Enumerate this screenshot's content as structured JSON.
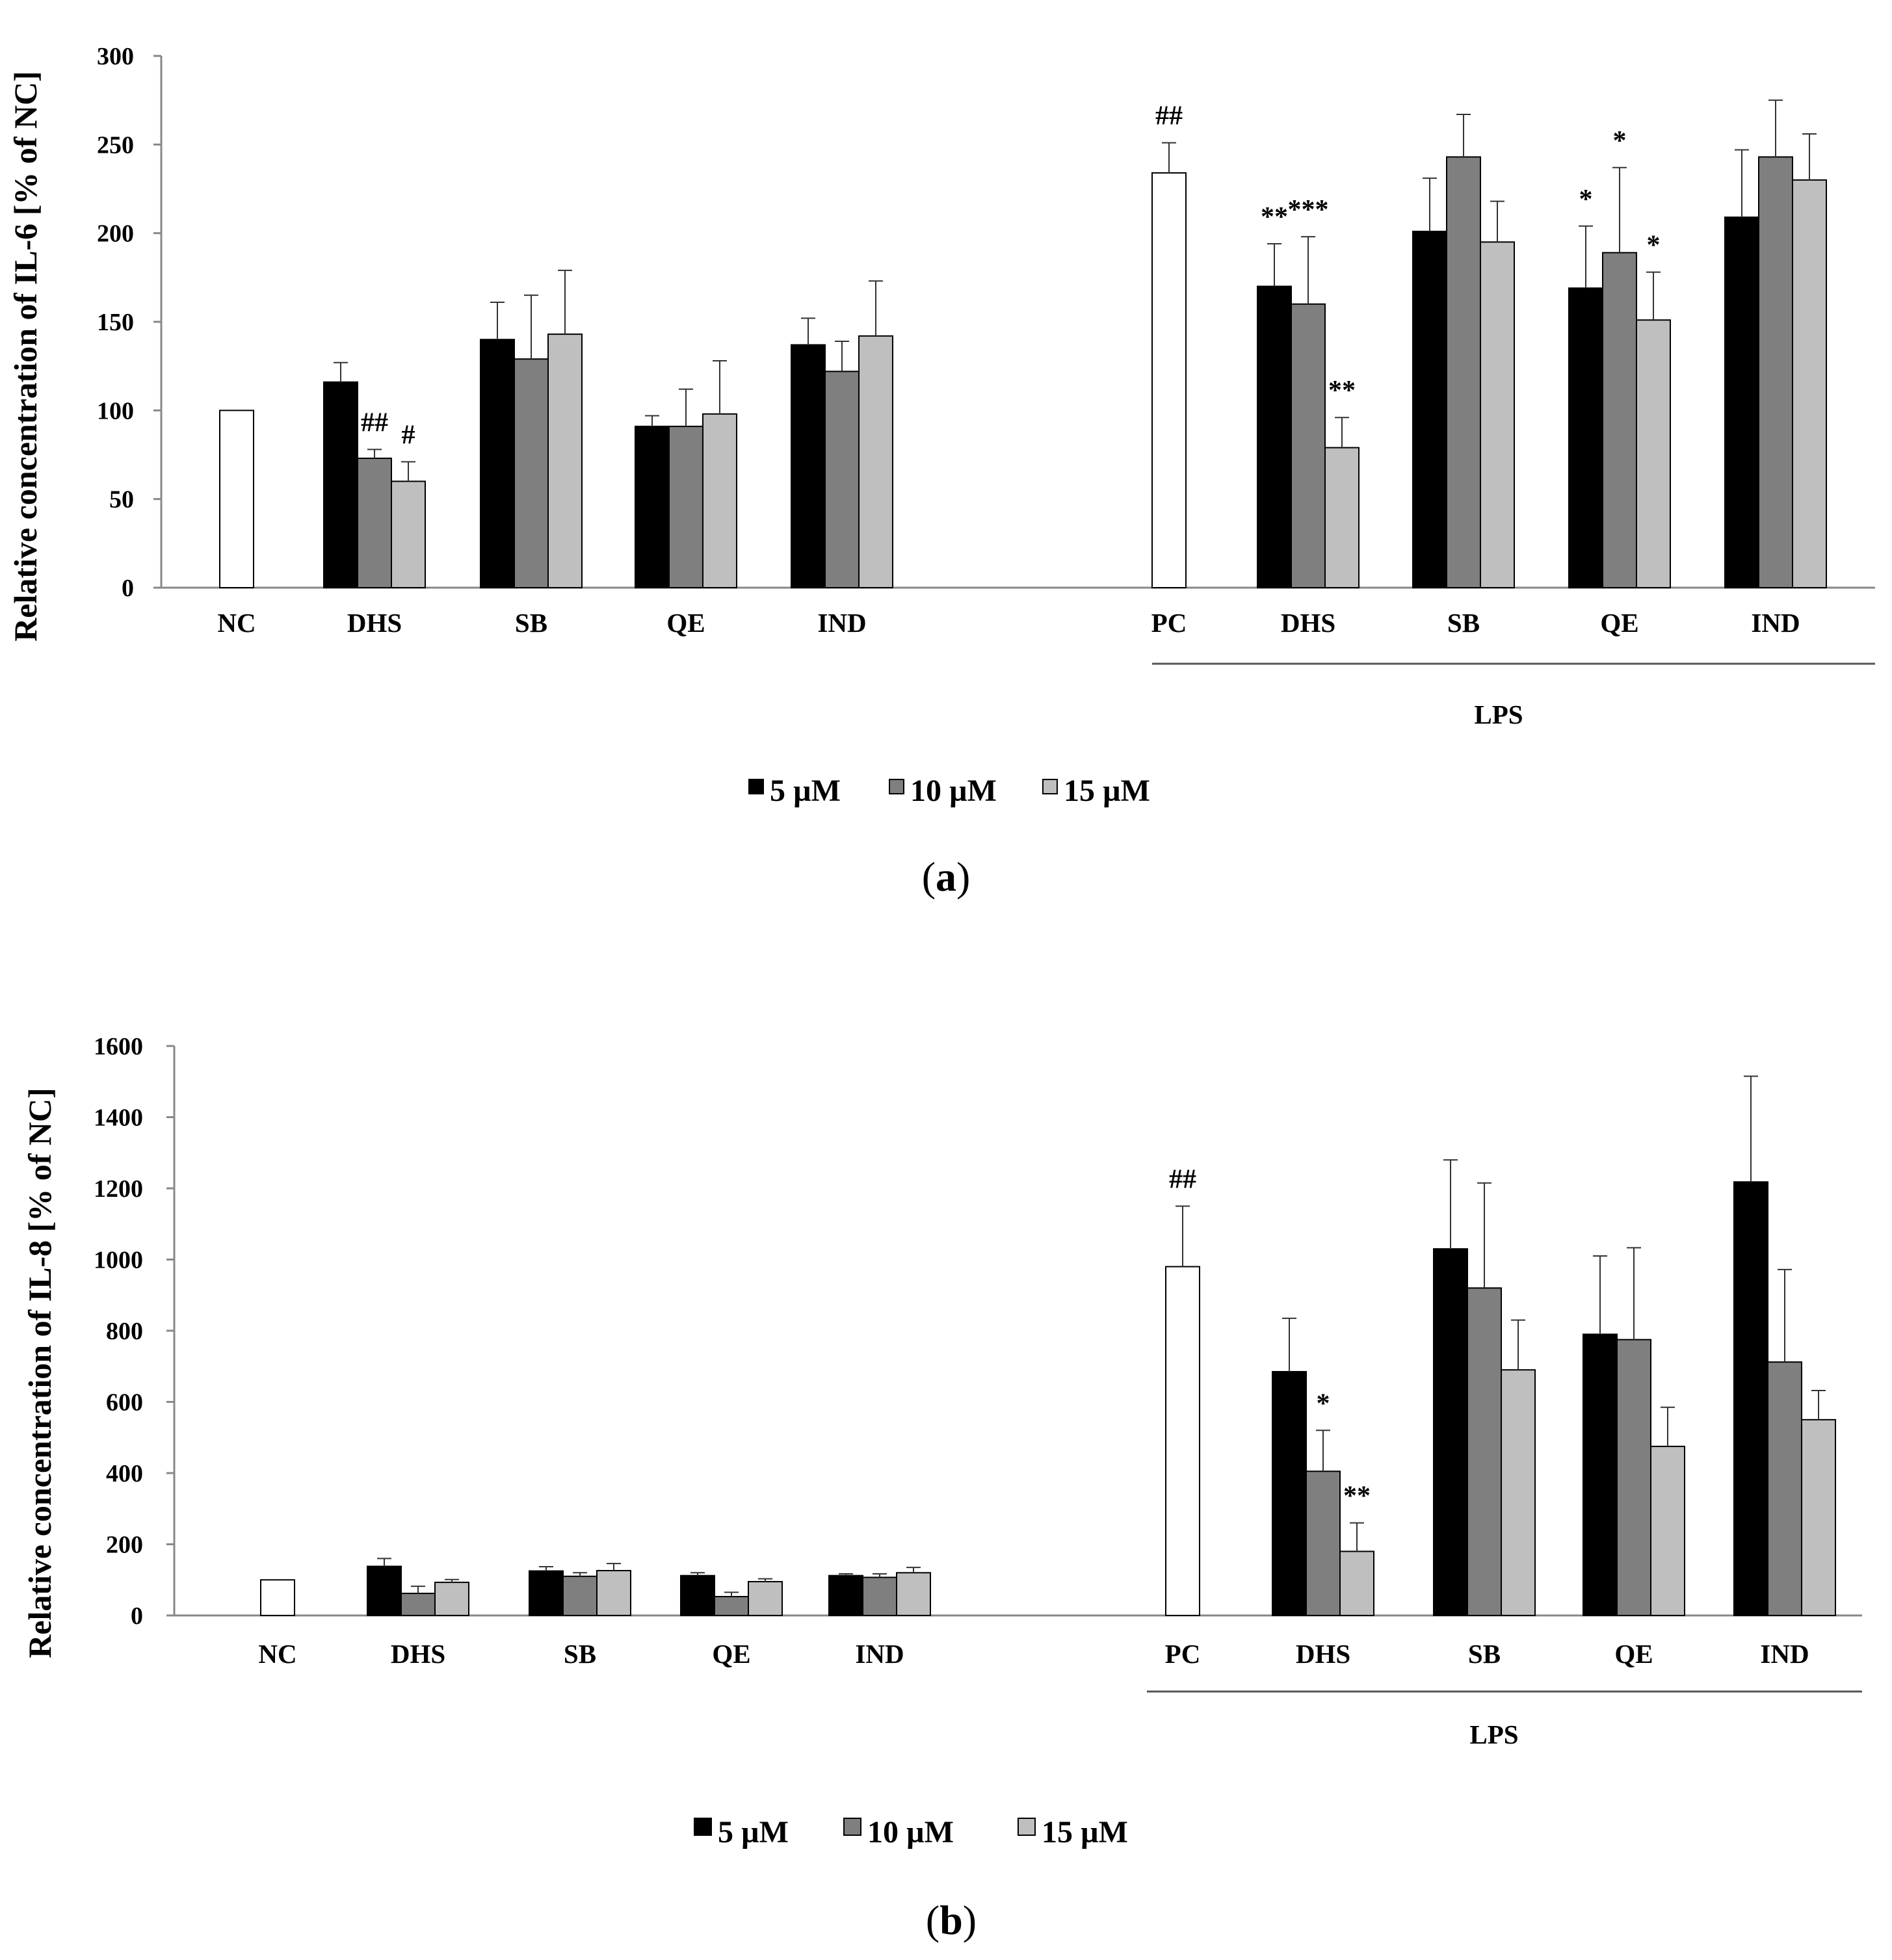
{
  "legend": [
    "5 µM",
    "10 µM",
    "15 µM"
  ],
  "colors": {
    "c5": "#000000",
    "c10": "#7f7f7f",
    "c15": "#bfbfbf",
    "control": "#ffffff",
    "stroke": "#000000",
    "axis": "#888888"
  },
  "chart_data": [
    {
      "type": "bar",
      "panel_label": "a",
      "ylabel": "Relative concentration of IL-6 [%  of NC]",
      "ylim": [
        0,
        300
      ],
      "yticks": [
        0,
        50,
        100,
        150,
        200,
        250,
        300
      ],
      "group_label": "LPS",
      "groups": [
        {
          "label": "NC",
          "bars": [
            {
              "series": "control",
              "value": 100,
              "err": 0
            }
          ]
        },
        {
          "label": "DHS",
          "bars": [
            {
              "series": "5 µM",
              "value": 116,
              "err": 11
            },
            {
              "series": "10 µM",
              "value": 73,
              "err": 5,
              "sig": "##"
            },
            {
              "series": "15 µM",
              "value": 60,
              "err": 11,
              "sig": "#"
            }
          ]
        },
        {
          "label": "SB",
          "bars": [
            {
              "series": "5 µM",
              "value": 140,
              "err": 21
            },
            {
              "series": "10 µM",
              "value": 129,
              "err": 36
            },
            {
              "series": "15 µM",
              "value": 143,
              "err": 36
            }
          ]
        },
        {
          "label": "QE",
          "bars": [
            {
              "series": "5 µM",
              "value": 91,
              "err": 6
            },
            {
              "series": "10 µM",
              "value": 91,
              "err": 21
            },
            {
              "series": "15 µM",
              "value": 98,
              "err": 30
            }
          ]
        },
        {
          "label": "IND",
          "bars": [
            {
              "series": "5 µM",
              "value": 137,
              "err": 15
            },
            {
              "series": "10 µM",
              "value": 122,
              "err": 17
            },
            {
              "series": "15 µM",
              "value": 142,
              "err": 31
            }
          ]
        },
        {
          "label": "PC",
          "bars": [
            {
              "series": "control",
              "value": 234,
              "err": 17,
              "sig": "##"
            }
          ]
        },
        {
          "label": "DHS",
          "bars": [
            {
              "series": "5 µM",
              "value": 170,
              "err": 24,
              "sig": "**"
            },
            {
              "series": "10 µM",
              "value": 160,
              "err": 38,
              "sig": "***"
            },
            {
              "series": "15 µM",
              "value": 79,
              "err": 17,
              "sig": "**"
            }
          ]
        },
        {
          "label": "SB",
          "bars": [
            {
              "series": "5 µM",
              "value": 201,
              "err": 30
            },
            {
              "series": "10 µM",
              "value": 243,
              "err": 24
            },
            {
              "series": "15 µM",
              "value": 195,
              "err": 23
            }
          ]
        },
        {
          "label": "QE",
          "bars": [
            {
              "series": "5 µM",
              "value": 169,
              "err": 35,
              "sig": "*"
            },
            {
              "series": "10 µM",
              "value": 189,
              "err": 48,
              "sig": "*"
            },
            {
              "series": "15 µM",
              "value": 151,
              "err": 27,
              "sig": "*"
            }
          ]
        },
        {
          "label": "IND",
          "bars": [
            {
              "series": "5 µM",
              "value": 209,
              "err": 38
            },
            {
              "series": "10 µM",
              "value": 243,
              "err": 32
            },
            {
              "series": "15 µM",
              "value": 230,
              "err": 26
            }
          ]
        }
      ]
    },
    {
      "type": "bar",
      "panel_label": "b",
      "ylabel": "Relative concentration of IL-8 [%  of NC]",
      "ylim": [
        0,
        1600
      ],
      "yticks": [
        0,
        200,
        400,
        600,
        800,
        1000,
        1200,
        1400,
        1600
      ],
      "group_label": "LPS",
      "groups": [
        {
          "label": "NC",
          "bars": [
            {
              "series": "control",
              "value": 100,
              "err": 0
            }
          ]
        },
        {
          "label": "DHS",
          "bars": [
            {
              "series": "5 µM",
              "value": 138,
              "err": 22
            },
            {
              "series": "10 µM",
              "value": 62,
              "err": 20
            },
            {
              "series": "15 µM",
              "value": 93,
              "err": 8
            }
          ]
        },
        {
          "label": "SB",
          "bars": [
            {
              "series": "5 µM",
              "value": 125,
              "err": 12
            },
            {
              "series": "10 µM",
              "value": 110,
              "err": 10
            },
            {
              "series": "15 µM",
              "value": 126,
              "err": 20
            }
          ]
        },
        {
          "label": "QE",
          "bars": [
            {
              "series": "5 µM",
              "value": 112,
              "err": 8
            },
            {
              "series": "10 µM",
              "value": 53,
              "err": 12
            },
            {
              "series": "15 µM",
              "value": 95,
              "err": 8
            }
          ]
        },
        {
          "label": "IND",
          "bars": [
            {
              "series": "5 µM",
              "value": 112,
              "err": 5
            },
            {
              "series": "10 µM",
              "value": 107,
              "err": 10
            },
            {
              "series": "15 µM",
              "value": 120,
              "err": 15
            }
          ]
        },
        {
          "label": "PC",
          "bars": [
            {
              "series": "control",
              "value": 980,
              "err": 170,
              "sig": "##"
            }
          ]
        },
        {
          "label": "DHS",
          "bars": [
            {
              "series": "5 µM",
              "value": 685,
              "err": 150
            },
            {
              "series": "10 µM",
              "value": 405,
              "err": 115,
              "sig": "*"
            },
            {
              "series": "15 µM",
              "value": 180,
              "err": 80,
              "sig": "**"
            }
          ]
        },
        {
          "label": "SB",
          "bars": [
            {
              "series": "5 µM",
              "value": 1030,
              "err": 250
            },
            {
              "series": "10 µM",
              "value": 920,
              "err": 295
            },
            {
              "series": "15 µM",
              "value": 690,
              "err": 140
            }
          ]
        },
        {
          "label": "QE",
          "bars": [
            {
              "series": "5 µM",
              "value": 790,
              "err": 220
            },
            {
              "series": "10 µM",
              "value": 775,
              "err": 258
            },
            {
              "series": "15 µM",
              "value": 475,
              "err": 110
            }
          ]
        },
        {
          "label": "IND",
          "bars": [
            {
              "series": "5 µM",
              "value": 1218,
              "err": 297
            },
            {
              "series": "10 µM",
              "value": 712,
              "err": 260
            },
            {
              "series": "15 µM",
              "value": 550,
              "err": 82
            }
          ]
        }
      ]
    }
  ]
}
